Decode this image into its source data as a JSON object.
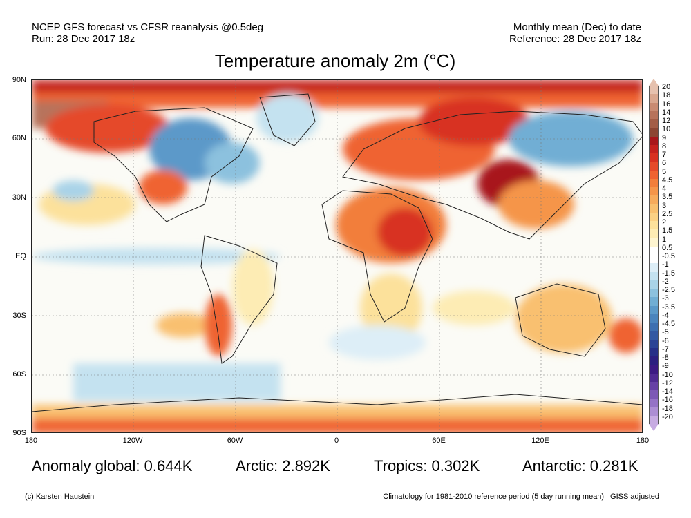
{
  "header": {
    "left_line1": "NCEP GFS forecast vs CFSR reanalysis @0.5deg",
    "left_line2": "Run: 28 Dec 2017 18z",
    "right_line1": "Monthly mean (Dec) to date",
    "right_line2": "Reference: 28 Dec 2017 18z"
  },
  "title": "Temperature anomaly 2m (°C)",
  "map": {
    "lat_labels": [
      "90N",
      "60N",
      "30N",
      "EQ",
      "30S",
      "60S",
      "90S"
    ],
    "lon_labels": [
      "180",
      "120W",
      "60W",
      "0",
      "60E",
      "120E",
      "180"
    ]
  },
  "colorbar": {
    "labels": [
      "20",
      "18",
      "16",
      "14",
      "12",
      "10",
      "9",
      "8",
      "7",
      "6",
      "5",
      "4.5",
      "4",
      "3.5",
      "3",
      "2.5",
      "2",
      "1.5",
      "1",
      "0.5",
      "-0.5",
      "-1",
      "-1.5",
      "-2",
      "-2.5",
      "-3",
      "-3.5",
      "-4",
      "-4.5",
      "-5",
      "-6",
      "-7",
      "-8",
      "-9",
      "-10",
      "-12",
      "-14",
      "-16",
      "-18",
      "-20"
    ],
    "colors": [
      "#e6c1ae",
      "#d9a78f",
      "#c98b72",
      "#b7735b",
      "#a35d46",
      "#8c4633",
      "#a8171b",
      "#c4221e",
      "#d83121",
      "#e54a2a",
      "#ef6331",
      "#f27e3b",
      "#f5954a",
      "#f7ab5c",
      "#f9c06f",
      "#fbd184",
      "#fce19b",
      "#fdecb4",
      "#fef5d0",
      "#ffffff",
      "#ffffff",
      "#ddeef7",
      "#c4e2f0",
      "#a9d3e8",
      "#8cc1de",
      "#71aed4",
      "#5b99c9",
      "#4a84bd",
      "#3d6fb0",
      "#3359a2",
      "#2b4395",
      "#262f88",
      "#2c1f80",
      "#3c1a83",
      "#4f2a92",
      "#6640a5",
      "#7d58b6",
      "#9572c6",
      "#ad8ed4",
      "#c7abe2"
    ]
  },
  "stats": {
    "global": "Anomaly global: 0.644K",
    "arctic": "Arctic: 2.892K",
    "tropics": "Tropics: 0.302K",
    "antarctic": "Antarctic: 0.281K"
  },
  "footer": {
    "left": "(c) Karsten Haustein",
    "right": "Climatology for 1981-2010 reference period (5 day running mean) | GISS adjusted"
  }
}
